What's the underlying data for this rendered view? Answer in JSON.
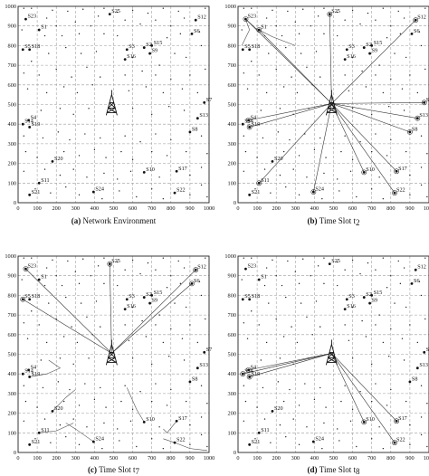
{
  "axis": {
    "xticks": [
      "0",
      "100",
      "200",
      "300",
      "400",
      "500",
      "600",
      "700",
      "800",
      "900",
      "1000"
    ],
    "yticks": [
      "0",
      "100",
      "200",
      "300",
      "400",
      "500",
      "600",
      "700",
      "800",
      "900",
      "1000"
    ],
    "range": [
      0,
      1000
    ]
  },
  "base_station": {
    "x": 490,
    "y": 505
  },
  "users": [
    {
      "id": "S1",
      "x": 110,
      "y": 880
    },
    {
      "id": "S2",
      "x": 660,
      "y": 790
    },
    {
      "id": "S3",
      "x": 570,
      "y": 780
    },
    {
      "id": "S4",
      "x": 55,
      "y": 420
    },
    {
      "id": "S5",
      "x": 25,
      "y": 780
    },
    {
      "id": "S6",
      "x": 910,
      "y": 860
    },
    {
      "id": "S7",
      "x": 975,
      "y": 510
    },
    {
      "id": "S8",
      "x": 900,
      "y": 360
    },
    {
      "id": "S9",
      "x": 690,
      "y": 760
    },
    {
      "id": "S10",
      "x": 660,
      "y": 155
    },
    {
      "id": "S11",
      "x": 110,
      "y": 100
    },
    {
      "id": "S12",
      "x": 930,
      "y": 930
    },
    {
      "id": "S13",
      "x": 940,
      "y": 430
    },
    {
      "id": "S14",
      "x": 25,
      "y": 400
    },
    {
      "id": "S15",
      "x": 700,
      "y": 800
    },
    {
      "id": "S16",
      "x": 560,
      "y": 730
    },
    {
      "id": "S17",
      "x": 830,
      "y": 160
    },
    {
      "id": "S18",
      "x": 60,
      "y": 780
    },
    {
      "id": "S19",
      "x": 60,
      "y": 385
    },
    {
      "id": "S20",
      "x": 180,
      "y": 210
    },
    {
      "id": "S21",
      "x": 60,
      "y": 40
    },
    {
      "id": "S22",
      "x": 820,
      "y": 50
    },
    {
      "id": "S23",
      "x": 40,
      "y": 935
    },
    {
      "id": "S24",
      "x": 395,
      "y": 55
    },
    {
      "id": "S25",
      "x": 480,
      "y": 960
    }
  ],
  "random_points": [
    [
      30,
      990
    ],
    [
      70,
      990
    ],
    [
      180,
      980
    ],
    [
      260,
      975
    ],
    [
      340,
      985
    ],
    [
      450,
      990
    ],
    [
      520,
      970
    ],
    [
      600,
      980
    ],
    [
      680,
      965
    ],
    [
      760,
      990
    ],
    [
      840,
      975
    ],
    [
      980,
      990
    ],
    [
      20,
      880
    ],
    [
      150,
      940
    ],
    [
      200,
      900
    ],
    [
      300,
      920
    ],
    [
      380,
      900
    ],
    [
      420,
      950
    ],
    [
      560,
      930
    ],
    [
      640,
      910
    ],
    [
      720,
      930
    ],
    [
      800,
      900
    ],
    [
      870,
      940
    ],
    [
      950,
      870
    ],
    [
      140,
      850
    ],
    [
      230,
      850
    ],
    [
      320,
      860
    ],
    [
      450,
      860
    ],
    [
      520,
      850
    ],
    [
      780,
      840
    ],
    [
      850,
      860
    ],
    [
      960,
      800
    ],
    [
      70,
      720
    ],
    [
      160,
      760
    ],
    [
      250,
      790
    ],
    [
      330,
      760
    ],
    [
      410,
      770
    ],
    [
      600,
      740
    ],
    [
      740,
      700
    ],
    [
      820,
      760
    ],
    [
      880,
      740
    ],
    [
      30,
      660
    ],
    [
      110,
      650
    ],
    [
      200,
      680
    ],
    [
      280,
      640
    ],
    [
      360,
      690
    ],
    [
      430,
      640
    ],
    [
      560,
      650
    ],
    [
      650,
      670
    ],
    [
      720,
      650
    ],
    [
      800,
      630
    ],
    [
      900,
      650
    ],
    [
      980,
      680
    ],
    [
      50,
      580
    ],
    [
      150,
      560
    ],
    [
      240,
      590
    ],
    [
      310,
      560
    ],
    [
      390,
      600
    ],
    [
      580,
      570
    ],
    [
      670,
      590
    ],
    [
      760,
      560
    ],
    [
      860,
      580
    ],
    [
      940,
      560
    ],
    [
      120,
      470
    ],
    [
      220,
      480
    ],
    [
      290,
      450
    ],
    [
      370,
      480
    ],
    [
      600,
      480
    ],
    [
      700,
      450
    ],
    [
      790,
      490
    ],
    [
      870,
      470
    ],
    [
      30,
      340
    ],
    [
      130,
      330
    ],
    [
      210,
      360
    ],
    [
      270,
      320
    ],
    [
      350,
      350
    ],
    [
      430,
      330
    ],
    [
      560,
      340
    ],
    [
      640,
      310
    ],
    [
      720,
      350
    ],
    [
      800,
      320
    ],
    [
      960,
      340
    ],
    [
      40,
      260
    ],
    [
      100,
      230
    ],
    [
      240,
      260
    ],
    [
      320,
      240
    ],
    [
      400,
      270
    ],
    [
      460,
      230
    ],
    [
      540,
      260
    ],
    [
      600,
      220
    ],
    [
      700,
      260
    ],
    [
      780,
      240
    ],
    [
      880,
      260
    ],
    [
      990,
      250
    ],
    [
      30,
      160
    ],
    [
      140,
      170
    ],
    [
      220,
      140
    ],
    [
      290,
      170
    ],
    [
      360,
      130
    ],
    [
      450,
      150
    ],
    [
      520,
      120
    ],
    [
      590,
      160
    ],
    [
      740,
      130
    ],
    [
      900,
      140
    ],
    [
      960,
      180
    ],
    [
      90,
      70
    ],
    [
      170,
      50
    ],
    [
      250,
      80
    ],
    [
      320,
      40
    ],
    [
      440,
      20
    ],
    [
      530,
      60
    ],
    [
      620,
      30
    ],
    [
      700,
      70
    ],
    [
      760,
      20
    ],
    [
      900,
      40
    ],
    [
      960,
      90
    ],
    [
      990,
      30
    ]
  ],
  "panels": [
    {
      "letter": "(a)",
      "title": "Network Environment",
      "sub": "",
      "links": [],
      "lines": []
    },
    {
      "letter": "(b)",
      "title": "Time Slot t",
      "sub": "2",
      "links": [
        "S1",
        "S7",
        "S8",
        "S11",
        "S12",
        "S13",
        "S17",
        "S22",
        "S23",
        "S24",
        "S25",
        "S19",
        "S4",
        "S10"
      ],
      "lines": [
        [
          [
            40,
            935
          ],
          [
            90,
            890
          ],
          [
            180,
            845
          ],
          [
            300,
            800
          ]
        ],
        [
          [
            40,
            935
          ],
          [
            60,
            880
          ],
          [
            20,
            800
          ]
        ]
      ]
    },
    {
      "letter": "(c)",
      "title": "Time Slot t",
      "sub": "7",
      "links": [
        "S23",
        "S5",
        "S12",
        "S6",
        "S25"
      ],
      "lines": [
        [
          [
            60,
            385
          ],
          [
            150,
            400
          ],
          [
            220,
            430
          ],
          [
            160,
            470
          ]
        ],
        [
          [
            180,
            210
          ],
          [
            250,
            280
          ],
          [
            300,
            320
          ]
        ],
        [
          [
            110,
            100
          ],
          [
            200,
            110
          ],
          [
            290,
            150
          ]
        ],
        [
          [
            395,
            55
          ],
          [
            300,
            120
          ],
          [
            250,
            150
          ]
        ],
        [
          [
            660,
            155
          ],
          [
            620,
            220
          ],
          [
            570,
            330
          ]
        ],
        [
          [
            820,
            50
          ],
          [
            900,
            20
          ],
          [
            990,
            10
          ]
        ],
        [
          [
            830,
            160
          ],
          [
            780,
            100
          ],
          [
            760,
            120
          ]
        ],
        [
          [
            820,
            50
          ],
          [
            760,
            70
          ]
        ]
      ]
    },
    {
      "letter": "(d)",
      "title": "Time Slot t",
      "sub": "8",
      "links": [
        "S4",
        "S10",
        "S17",
        "S22",
        "S14",
        "S19"
      ],
      "lines": []
    }
  ]
}
